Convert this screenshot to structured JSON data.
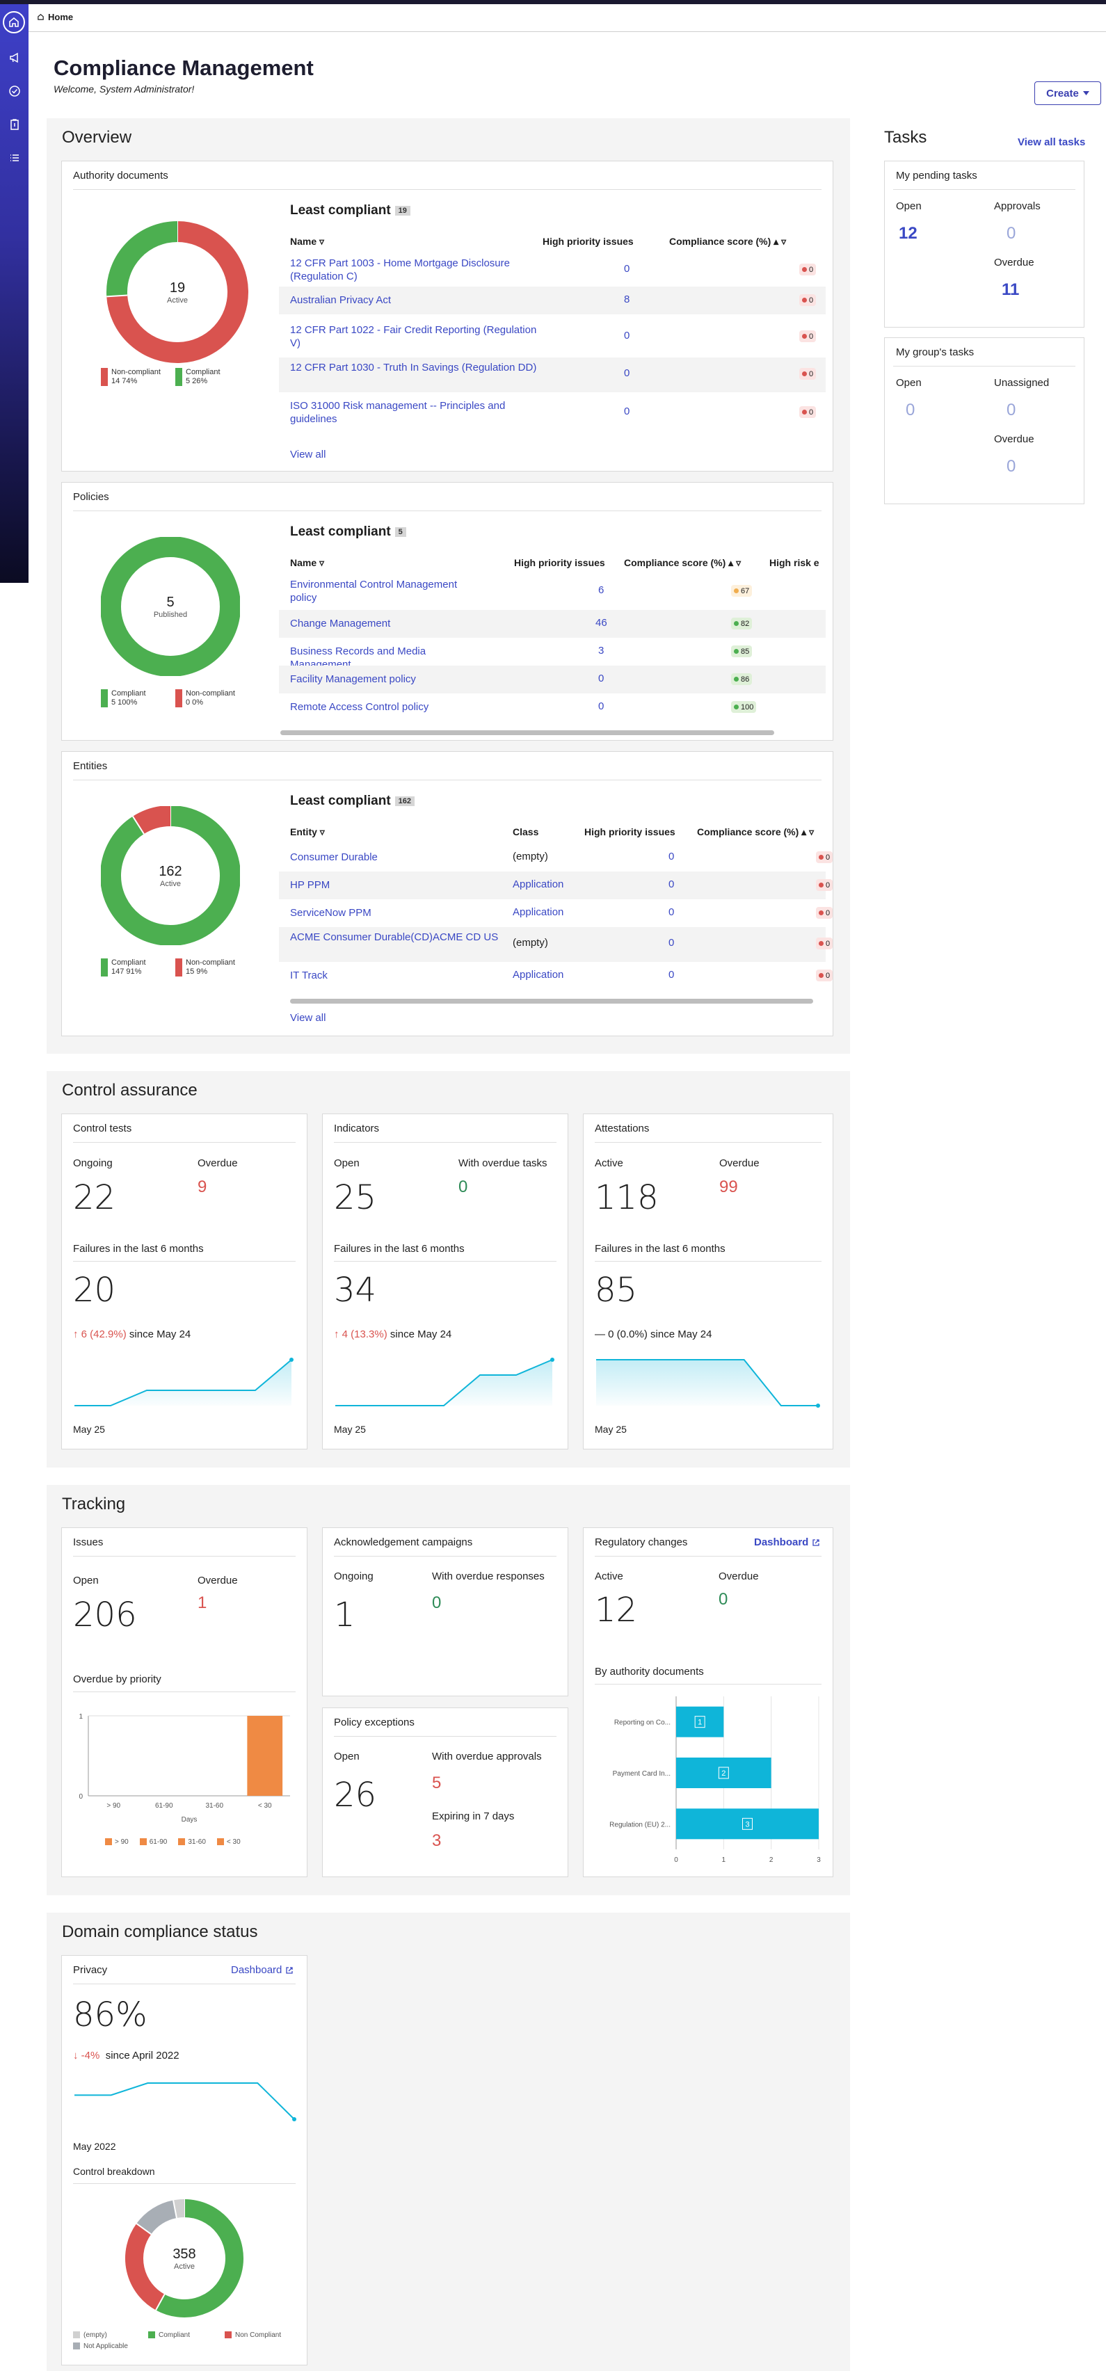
{
  "nav": {
    "home_tab": "Home"
  },
  "header": {
    "title": "Compliance Management",
    "welcome": "Welcome, System Administrator!",
    "create": "Create"
  },
  "overview": {
    "title": "Overview",
    "authority": {
      "title": "Authority documents",
      "donut": {
        "value": "19",
        "label": "Active",
        "segments": [
          {
            "name": "Non-compliant",
            "count": 14,
            "pct": 74,
            "color": "#d9534f"
          },
          {
            "name": "Compliant",
            "count": 5,
            "pct": 26,
            "color": "#4caf50"
          }
        ]
      },
      "legend": [
        {
          "name": "Non-compliant",
          "val": "14  74%"
        },
        {
          "name": "Compliant",
          "val": "5  26%"
        }
      ],
      "least": "Least compliant",
      "count": "19",
      "cols": {
        "name": "Name",
        "hpi": "High priority issues",
        "score": "Compliance score (%)"
      },
      "rows": [
        {
          "name": "12 CFR Part 1003 - Home Mortgage Disclosure (Regulation C)",
          "hpi": "0",
          "score": "0"
        },
        {
          "name": "Australian Privacy Act",
          "hpi": "8",
          "score": "0"
        },
        {
          "name": "12 CFR Part 1022 - Fair Credit Reporting (Regulation V)",
          "hpi": "0",
          "score": "0"
        },
        {
          "name": "12 CFR Part 1030 - Truth In Savings (Regulation DD)",
          "hpi": "0",
          "score": "0"
        },
        {
          "name": "ISO 31000 Risk management -- Principles and guidelines",
          "hpi": "0",
          "score": "0"
        }
      ],
      "view_all": "View all"
    },
    "policies": {
      "title": "Policies",
      "donut": {
        "value": "5",
        "label": "Published",
        "segments": [
          {
            "name": "Compliant",
            "count": 5,
            "pct": 100,
            "color": "#4caf50"
          },
          {
            "name": "Non-compliant",
            "count": 0,
            "pct": 0,
            "color": "#d9534f"
          }
        ]
      },
      "legend": [
        {
          "name": "Compliant",
          "val": "5  100%"
        },
        {
          "name": "Non-compliant",
          "val": "0  0%"
        }
      ],
      "least": "Least compliant",
      "count": "5",
      "cols": {
        "name": "Name",
        "hpi": "High priority issues",
        "score": "Compliance score (%)",
        "risk": "High risk e"
      },
      "rows": [
        {
          "name": "Environmental Control Management policy",
          "hpi": "6",
          "score": "67",
          "color": "#f0ad4e",
          "bg": "#fdf0dc"
        },
        {
          "name": "Change Management",
          "hpi": "46",
          "score": "82",
          "color": "#4caf50",
          "bg": "#dff0d8"
        },
        {
          "name": "Business Records and Media Management",
          "hpi": "3",
          "score": "85",
          "color": "#4caf50",
          "bg": "#dff0d8"
        },
        {
          "name": "Facility Management policy",
          "hpi": "0",
          "score": "86",
          "color": "#4caf50",
          "bg": "#dff0d8"
        },
        {
          "name": "Remote Access Control policy",
          "hpi": "0",
          "score": "100",
          "color": "#4caf50",
          "bg": "#dff0d8"
        }
      ]
    },
    "entities": {
      "title": "Entities",
      "donut": {
        "value": "162",
        "label": "Active",
        "segments": [
          {
            "name": "Compliant",
            "count": 147,
            "pct": 91,
            "color": "#4caf50"
          },
          {
            "name": "Non-compliant",
            "count": 15,
            "pct": 9,
            "color": "#d9534f"
          }
        ]
      },
      "legend": [
        {
          "name": "Compliant",
          "val": "147  91%"
        },
        {
          "name": "Non-compliant",
          "val": "15  9%"
        }
      ],
      "least": "Least compliant",
      "count": "162",
      "cols": {
        "entity": "Entity",
        "class": "Class",
        "hpi": "High priority issues",
        "score": "Compliance score (%)"
      },
      "rows": [
        {
          "name": "Consumer Durable",
          "cls": "(empty)",
          "cls_link": false,
          "hpi": "0",
          "score": "0"
        },
        {
          "name": "HP PPM",
          "cls": "Application",
          "cls_link": true,
          "hpi": "0",
          "score": "0"
        },
        {
          "name": "ServiceNow PPM",
          "cls": "Application",
          "cls_link": true,
          "hpi": "0",
          "score": "0"
        },
        {
          "name": "ACME Consumer Durable(CD)ACME CD US",
          "cls": "(empty)",
          "cls_link": false,
          "hpi": "0",
          "score": "0"
        },
        {
          "name": "IT Track",
          "cls": "Application",
          "cls_link": true,
          "hpi": "0",
          "score": "0"
        }
      ],
      "view_all": "View all"
    }
  },
  "tasks": {
    "title": "Tasks",
    "view_all": "View all tasks",
    "pending": {
      "title": "My pending tasks",
      "open_label": "Open",
      "open": "12",
      "approvals_label": "Approvals",
      "approvals": "0",
      "overdue_label": "Overdue",
      "overdue": "11"
    },
    "group": {
      "title": "My group's tasks",
      "open_label": "Open",
      "open": "0",
      "unassigned_label": "Unassigned",
      "unassigned": "0",
      "overdue_label": "Overdue",
      "overdue": "0"
    }
  },
  "control": {
    "title": "Control assurance",
    "cards": [
      {
        "title": "Control tests",
        "l1": "Ongoing",
        "v1": "22",
        "l2": "Overdue",
        "v2": "9",
        "fail": "Failures in the last 6 months",
        "fv": "20",
        "delta": "6 (42.9%)",
        "since": "since May 24",
        "dir": "up",
        "date": "May 25",
        "trend": [
          0,
          0,
          1,
          1,
          1,
          1,
          3
        ]
      },
      {
        "title": "Indicators",
        "l1": "Open",
        "v1": "25",
        "l2": "With overdue tasks",
        "v2": "0",
        "fail": "Failures in the last 6 months",
        "fv": "34",
        "delta": "4 (13.3%)",
        "since": "since May 24",
        "dir": "up",
        "date": "May 25",
        "trend": [
          0,
          0,
          0,
          0,
          2,
          2,
          3
        ]
      },
      {
        "title": "Attestations",
        "l1": "Active",
        "v1": "118",
        "l2": "Overdue",
        "v2": "99",
        "fail": "Failures in the last 6 months",
        "fv": "85",
        "delta": "0 (0.0%)",
        "since": "since May 24",
        "dir": "flat",
        "date": "May 25",
        "trend": [
          3,
          3,
          3,
          3,
          3,
          0,
          0
        ]
      }
    ]
  },
  "tracking": {
    "title": "Tracking",
    "issues": {
      "title": "Issues",
      "open_label": "Open",
      "open": "206",
      "overdue_label": "Overdue",
      "overdue": "1",
      "chart_title": "Overdue by priority"
    },
    "ack": {
      "title": "Acknowledgement campaigns",
      "l1": "Ongoing",
      "v1": "1",
      "l2": "With overdue responses",
      "v2": "0"
    },
    "exceptions": {
      "title": "Policy exceptions",
      "l1": "Open",
      "v1": "26",
      "l2": "With overdue approvals",
      "v2": "5",
      "l3": "Expiring in 7 days",
      "v3": "3"
    },
    "reg": {
      "title": "Regulatory changes",
      "dashboard": "Dashboard",
      "l1": "Active",
      "v1": "12",
      "l2": "Overdue",
      "v2": "0",
      "chart_title": "By authority documents"
    }
  },
  "domain": {
    "title": "Domain compliance status",
    "privacy": {
      "title": "Privacy",
      "dashboard": "Dashboard",
      "pct": "86%",
      "delta": "-4%",
      "since": "since April 2022",
      "date": "May 2022",
      "breakdown": "Control breakdown",
      "donut_value": "358",
      "donut_label": "Active",
      "legend": [
        {
          "name": "(empty)",
          "color": "#d0d0d0"
        },
        {
          "name": "Compliant",
          "color": "#4caf50"
        },
        {
          "name": "Non Compliant",
          "color": "#d9534f"
        },
        {
          "name": "Not Applicable",
          "color": "#a8aeb5"
        }
      ],
      "segments": [
        {
          "name": "Compliant",
          "pct": 0.58,
          "color": "#4caf50"
        },
        {
          "name": "Non Compliant",
          "pct": 0.27,
          "color": "#d9534f"
        },
        {
          "name": "Not Applicable",
          "pct": 0.12,
          "color": "#a8aeb5"
        },
        {
          "name": "(empty)",
          "pct": 0.03,
          "color": "#d0d0d0"
        }
      ],
      "trend": [
        2,
        2,
        3,
        3,
        3,
        3,
        0
      ]
    }
  },
  "chart_data": [
    {
      "type": "bar",
      "title": "Overdue by priority",
      "categories": [
        "> 90",
        "61-90",
        "31-60",
        "< 30"
      ],
      "values": [
        0,
        0,
        0,
        1
      ],
      "xlabel": "Days",
      "ylabel": "",
      "ylim": [
        0,
        1
      ],
      "legend": [
        "> 90",
        "61-90",
        "31-60",
        "< 30"
      ],
      "color": "#ef8a44"
    },
    {
      "type": "bar",
      "orientation": "horizontal",
      "title": "By authority documents",
      "categories": [
        "Reporting on Co...",
        "Payment Card In...",
        "Regulation (EU) 2..."
      ],
      "values": [
        1,
        2,
        3
      ],
      "xlim": [
        0,
        3
      ],
      "color": "#0fb5d9"
    }
  ]
}
